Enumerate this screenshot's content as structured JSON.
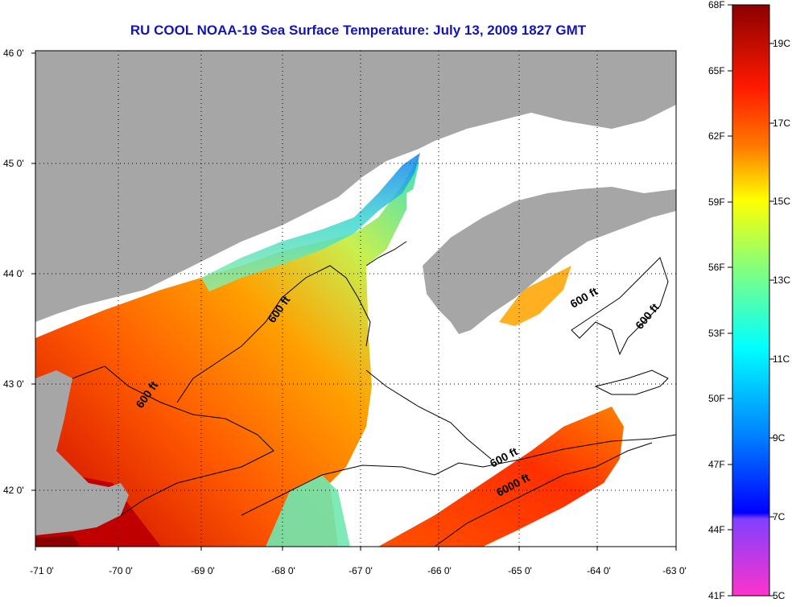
{
  "title": "RU COOL  NOAA-19  Sea Surface Temperature:  July 13, 2009 1827 GMT",
  "map": {
    "x_ticks": [
      "-71 0'",
      "-70 0'",
      "-69 0'",
      "-68 0'",
      "-67 0'",
      "-66 0'",
      "-65 0'",
      "-64 0'",
      "-63 0'"
    ],
    "y_ticks": [
      "46 0'",
      "45 0'",
      "44 0'",
      "43 0'",
      "42 0'"
    ],
    "contour_labels": [
      {
        "text": "600 ft",
        "rotation": -55
      },
      {
        "text": "600 ft",
        "rotation": -55
      },
      {
        "text": "600 ft",
        "rotation": -30
      },
      {
        "text": "600 ft",
        "rotation": -50
      },
      {
        "text": "600 ft",
        "rotation": -28
      },
      {
        "text": "6000 ft",
        "rotation": -28
      }
    ],
    "colors": {
      "land": "#a6a6a6",
      "background": "#ffffff",
      "contour": "#000000",
      "grid": "#000000"
    }
  },
  "colorbar": {
    "f_labels": [
      "68F",
      "65F",
      "62F",
      "59F",
      "56F",
      "53F",
      "50F",
      "47F",
      "44F",
      "41F"
    ],
    "c_labels": [
      "19C",
      "17C",
      "15C",
      "13C",
      "11C",
      "9C",
      "7C",
      "5C"
    ]
  }
}
